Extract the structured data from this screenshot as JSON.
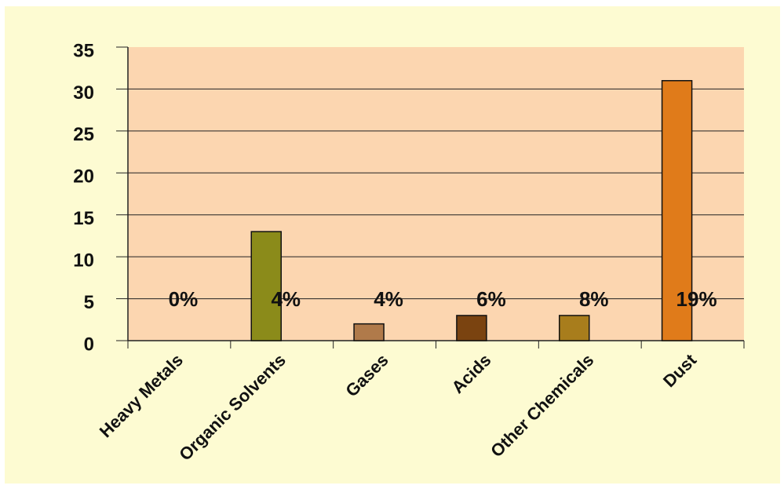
{
  "chart_data": {
    "type": "bar",
    "categories": [
      "Heavy Metals",
      "Organic Solvents",
      "Gases",
      "Acids",
      "Other Chemicals",
      "Dust"
    ],
    "values": [
      0,
      13,
      2,
      3,
      3,
      31
    ],
    "colors": [
      "#8b8b1a",
      "#8b8b1a",
      "#b07a4a",
      "#7a4310",
      "#a87d1c",
      "#e07b1a"
    ],
    "annotations": [
      "0%",
      "4%",
      "4%",
      "6%",
      "8%",
      "19%"
    ],
    "ylim": [
      0,
      35
    ],
    "yticks": [
      0,
      5,
      10,
      15,
      20,
      25,
      30,
      35
    ],
    "grid": true
  }
}
